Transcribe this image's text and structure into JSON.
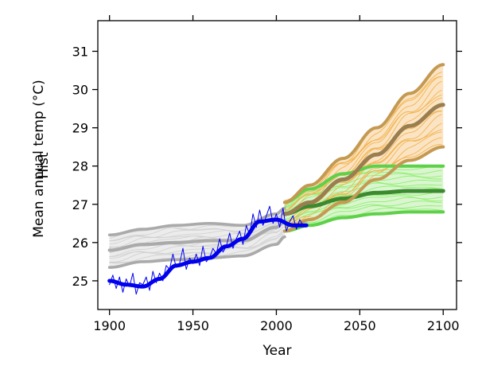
{
  "chart_data": {
    "type": "line",
    "title": "",
    "xlabel": "Year",
    "ylabel": "Mean annual temp (°C)",
    "overlap_label": "Hist",
    "xlim": [
      1893,
      2108
    ],
    "ylim": [
      24.25,
      31.8
    ],
    "x_ticks": [
      1900,
      1950,
      2000,
      2050,
      2100
    ],
    "y_ticks": [
      25,
      26,
      27,
      28,
      29,
      30,
      31
    ],
    "grid": false,
    "legend": "none",
    "colors": {
      "observed": "#0000ee",
      "historical": "#aaaaaa",
      "historical_thin": "#d2d2d2",
      "high_scenario": "#c49a52",
      "high_scenario_thin": "#f2b450",
      "high_scenario_mean": "#9a7e50",
      "high_band": "#fbe4c4",
      "low_scenario": "#5fd04a",
      "low_scenario_thin": "#8ff070",
      "low_scenario_mean": "#3c8a30",
      "low_band": "#daf5d0",
      "hist_band": "#ececec"
    },
    "series": [
      {
        "role": "historical-upper",
        "x": [
          1900,
          1920,
          1940,
          1960,
          1980,
          2000,
          2005
        ],
        "y": [
          26.2,
          26.35,
          26.45,
          26.5,
          26.45,
          26.75,
          26.9
        ]
      },
      {
        "role": "historical-mean",
        "x": [
          1900,
          1920,
          1940,
          1960,
          1980,
          2000,
          2005
        ],
        "y": [
          25.8,
          25.95,
          26.0,
          26.05,
          26.05,
          26.4,
          26.55
        ]
      },
      {
        "role": "historical-lower",
        "x": [
          1900,
          1920,
          1940,
          1960,
          1980,
          2000,
          2005
        ],
        "y": [
          25.35,
          25.5,
          25.55,
          25.6,
          25.65,
          25.95,
          26.15
        ]
      },
      {
        "role": "observed-smooth",
        "x": [
          1900,
          1910,
          1920,
          1930,
          1940,
          1950,
          1960,
          1970,
          1980,
          1990,
          2000,
          2010,
          2018
        ],
        "y": [
          25.0,
          24.9,
          24.85,
          25.05,
          25.4,
          25.5,
          25.6,
          25.9,
          26.1,
          26.55,
          26.6,
          26.45,
          26.45
        ]
      },
      {
        "role": "observed-annual",
        "x": [
          1900,
          1902,
          1904,
          1906,
          1908,
          1910,
          1912,
          1914,
          1916,
          1918,
          1920,
          1922,
          1924,
          1926,
          1928,
          1930,
          1932,
          1934,
          1936,
          1938,
          1940,
          1942,
          1944,
          1946,
          1948,
          1950,
          1952,
          1954,
          1956,
          1958,
          1960,
          1962,
          1964,
          1966,
          1968,
          1970,
          1972,
          1974,
          1976,
          1978,
          1980,
          1982,
          1984,
          1986,
          1988,
          1990,
          1992,
          1994,
          1996,
          1998,
          2000,
          2002,
          2004,
          2006,
          2008,
          2010,
          2012,
          2014,
          2016
        ],
        "y": [
          24.9,
          25.15,
          24.8,
          25.1,
          24.7,
          25.05,
          24.85,
          25.2,
          24.65,
          24.95,
          24.9,
          25.1,
          24.75,
          25.25,
          24.95,
          25.2,
          25.0,
          25.4,
          25.3,
          25.7,
          25.35,
          25.45,
          25.85,
          25.3,
          25.6,
          25.45,
          25.7,
          25.4,
          25.9,
          25.5,
          25.6,
          25.85,
          25.7,
          26.1,
          25.75,
          25.9,
          26.25,
          25.85,
          26.1,
          26.3,
          25.95,
          26.45,
          26.2,
          26.75,
          26.4,
          26.85,
          26.45,
          26.7,
          26.95,
          26.5,
          26.75,
          26.4,
          26.9,
          26.3,
          26.55,
          26.7,
          26.35,
          26.6,
          26.45
        ]
      },
      {
        "role": "high-upper",
        "x": [
          2005,
          2020,
          2040,
          2060,
          2080,
          2100
        ],
        "y": [
          27.05,
          27.5,
          28.2,
          29.0,
          29.9,
          30.65
        ]
      },
      {
        "role": "high-mean",
        "x": [
          2005,
          2020,
          2040,
          2060,
          2080,
          2100
        ],
        "y": [
          26.75,
          27.05,
          27.65,
          28.3,
          29.05,
          29.6
        ]
      },
      {
        "role": "high-lower",
        "x": [
          2005,
          2020,
          2040,
          2060,
          2080,
          2100
        ],
        "y": [
          26.3,
          26.6,
          27.05,
          27.65,
          28.15,
          28.5
        ]
      },
      {
        "role": "low-upper",
        "x": [
          2005,
          2020,
          2040,
          2060,
          2080,
          2100
        ],
        "y": [
          27.05,
          27.4,
          27.8,
          28.0,
          28.0,
          28.0
        ]
      },
      {
        "role": "low-mean",
        "x": [
          2005,
          2020,
          2040,
          2060,
          2080,
          2100
        ],
        "y": [
          26.75,
          26.95,
          27.15,
          27.3,
          27.35,
          27.35
        ]
      },
      {
        "role": "low-lower",
        "x": [
          2005,
          2020,
          2040,
          2060,
          2080,
          2100
        ],
        "y": [
          26.3,
          26.45,
          26.65,
          26.75,
          26.8,
          26.8
        ]
      }
    ]
  }
}
